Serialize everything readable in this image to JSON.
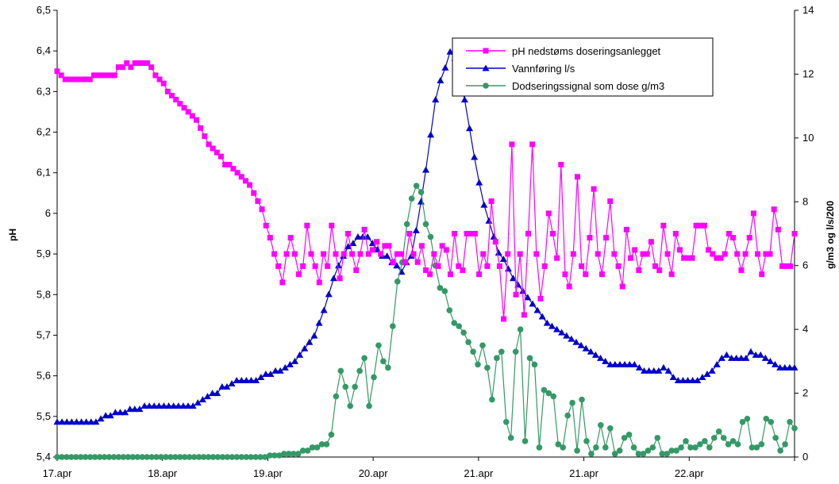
{
  "chart_data": {
    "type": "line",
    "title": "",
    "xlabel": "",
    "ylabel_left": "pH",
    "ylabel_right": "g/m3 og l/s/200",
    "ylim_left": [
      5.4,
      6.5
    ],
    "ylim_right": [
      0,
      14
    ],
    "y_left_ticks": [
      "5,4",
      "5,5",
      "5,6",
      "5,7",
      "5,8",
      "5,9",
      "6",
      "6,1",
      "6,2",
      "6,3",
      "6,4",
      "6,5"
    ],
    "y_right_ticks": [
      "0",
      "2",
      "4",
      "6",
      "8",
      "10",
      "12",
      "14"
    ],
    "x_ticks": [
      "17.apr",
      "18.apr",
      "19.apr",
      "20.apr",
      "21.apr",
      "21.apr",
      "22.apr"
    ],
    "grid": false,
    "legend_position": "top-right",
    "series": [
      {
        "name": "pH nedstøms doseringsanlegget",
        "axis": "left",
        "color": "#ff00ff",
        "marker": "square",
        "values": [
          6.35,
          6.34,
          6.33,
          6.33,
          6.33,
          6.33,
          6.33,
          6.33,
          6.33,
          6.34,
          6.34,
          6.34,
          6.34,
          6.34,
          6.34,
          6.36,
          6.36,
          6.37,
          6.36,
          6.37,
          6.37,
          6.37,
          6.37,
          6.36,
          6.34,
          6.33,
          6.32,
          6.3,
          6.29,
          6.28,
          6.27,
          6.26,
          6.25,
          6.24,
          6.23,
          6.21,
          6.19,
          6.17,
          6.16,
          6.15,
          6.14,
          6.12,
          6.12,
          6.11,
          6.1,
          6.09,
          6.08,
          6.07,
          6.05,
          6.03,
          6.01,
          5.97,
          5.94,
          5.9,
          5.87,
          5.83,
          5.9,
          5.94,
          5.9,
          5.85,
          5.87,
          5.97,
          5.9,
          5.87,
          5.83,
          5.9,
          5.87,
          5.97,
          5.9,
          5.84,
          5.9,
          5.95,
          5.9,
          5.86,
          5.9,
          5.96,
          5.9,
          5.91,
          5.93,
          5.9,
          5.92,
          5.92,
          5.88,
          5.9,
          5.9,
          5.88,
          5.95,
          5.9,
          5.88,
          5.92,
          5.86,
          5.85,
          5.9,
          5.87,
          5.92,
          5.91,
          5.85,
          5.95,
          5.87,
          5.86,
          5.95,
          5.95,
          5.95,
          5.85,
          5.9,
          5.87,
          6.03,
          5.93,
          5.87,
          5.74,
          5.9,
          6.17,
          5.8,
          5.9,
          5.75,
          5.95,
          6.17,
          5.9,
          5.79,
          5.87,
          6.0,
          5.95,
          5.89,
          6.12,
          5.85,
          5.82,
          5.9,
          6.09,
          5.87,
          5.85,
          5.94,
          6.06,
          5.9,
          5.85,
          5.94,
          6.03,
          5.9,
          5.87,
          5.82,
          5.96,
          5.89,
          5.91,
          5.86,
          5.9,
          5.9,
          5.93,
          5.87,
          5.86,
          5.97,
          5.9,
          5.85,
          5.95,
          5.91,
          5.89,
          5.89,
          5.89,
          5.97,
          5.97,
          5.97,
          5.91,
          5.9,
          5.89,
          5.89,
          5.9,
          5.95,
          5.94,
          5.9,
          5.86,
          5.9,
          5.94,
          6.0,
          5.9,
          5.85,
          5.9,
          5.9,
          6.01,
          5.96,
          5.87,
          5.87,
          5.87,
          5.95
        ]
      },
      {
        "name": "Vannføring l/s",
        "axis": "right",
        "color": "#0000cc",
        "marker": "triangle",
        "values": [
          1.1,
          1.1,
          1.1,
          1.1,
          1.1,
          1.1,
          1.1,
          1.1,
          1.1,
          1.2,
          1.3,
          1.3,
          1.4,
          1.4,
          1.4,
          1.5,
          1.5,
          1.5,
          1.6,
          1.6,
          1.6,
          1.6,
          1.6,
          1.6,
          1.6,
          1.6,
          1.6,
          1.6,
          1.6,
          1.7,
          1.8,
          1.9,
          2.0,
          2.0,
          2.2,
          2.2,
          2.3,
          2.4,
          2.4,
          2.4,
          2.4,
          2.4,
          2.5,
          2.6,
          2.6,
          2.7,
          2.7,
          2.8,
          2.9,
          3.0,
          3.2,
          3.4,
          3.6,
          3.8,
          4.2,
          4.6,
          5.1,
          5.6,
          6.0,
          6.3,
          6.6,
          6.7,
          6.9,
          6.9,
          6.9,
          6.7,
          6.5,
          6.3,
          6.3,
          6.1,
          6.0,
          5.8,
          6.1,
          6.3,
          7.1,
          8.0,
          9.0,
          10.1,
          11.2,
          11.8,
          12.2,
          12.7,
          12.5,
          12.0,
          11.2,
          10.3,
          9.4,
          8.6,
          7.9,
          7.4,
          6.9,
          6.4,
          6.2,
          5.9,
          5.6,
          5.4,
          5.2,
          5.0,
          4.8,
          4.6,
          4.4,
          4.2,
          4.1,
          4.0,
          3.9,
          3.8,
          3.7,
          3.6,
          3.5,
          3.4,
          3.3,
          3.2,
          3.1,
          3.0,
          2.9,
          2.9,
          2.9,
          2.9,
          2.9,
          2.9,
          2.8,
          2.7,
          2.7,
          2.7,
          2.7,
          2.8,
          2.7,
          2.5,
          2.4,
          2.4,
          2.4,
          2.4,
          2.4,
          2.5,
          2.6,
          2.7,
          2.9,
          3.1,
          3.2,
          3.1,
          3.1,
          3.1,
          3.1,
          3.3,
          3.2,
          3.2,
          3.1,
          3.0,
          2.9,
          2.8,
          2.8,
          2.8,
          2.8
        ]
      },
      {
        "name": "Dodseringssignal som dose g/m3",
        "axis": "right",
        "color": "#339966",
        "marker": "circle",
        "values": [
          0.0,
          0.0,
          0.0,
          0.0,
          0.0,
          0.0,
          0.0,
          0.0,
          0.0,
          0.0,
          0.0,
          0.0,
          0.0,
          0.0,
          0.0,
          0.0,
          0.0,
          0.0,
          0.0,
          0.0,
          0.0,
          0.0,
          0.0,
          0.0,
          0.0,
          0.0,
          0.0,
          0.0,
          0.0,
          0.0,
          0.0,
          0.0,
          0.0,
          0.0,
          0.0,
          0.0,
          0.0,
          0.0,
          0.0,
          0.0,
          0.0,
          0.0,
          0.0,
          0.0,
          0.0,
          0.05,
          0.05,
          0.05,
          0.1,
          0.1,
          0.1,
          0.1,
          0.2,
          0.2,
          0.3,
          0.3,
          0.4,
          0.4,
          0.7,
          1.9,
          2.7,
          2.2,
          1.6,
          2.2,
          2.7,
          3.1,
          1.6,
          2.5,
          3.5,
          3.0,
          2.8,
          4.1,
          5.5,
          6.1,
          7.3,
          8.1,
          8.5,
          8.3,
          7.3,
          6.9,
          6.0,
          5.3,
          5.2,
          4.6,
          4.2,
          4.1,
          3.9,
          3.6,
          3.3,
          2.9,
          3.5,
          2.8,
          1.8,
          3.1,
          3.3,
          1.1,
          0.6,
          3.3,
          4.0,
          0.5,
          3.1,
          2.9,
          0.3,
          2.1,
          2.0,
          1.9,
          0.4,
          0.3,
          1.3,
          1.7,
          0.2,
          1.8,
          0.5,
          0.1,
          0.3,
          1.0,
          0.3,
          0.9,
          0.1,
          0.2,
          0.6,
          0.7,
          0.3,
          0.1,
          0.1,
          0.2,
          0.3,
          0.6,
          0.1,
          0.1,
          0.2,
          0.2,
          0.3,
          0.5,
          0.3,
          0.3,
          0.4,
          0.5,
          0.3,
          0.6,
          0.8,
          0.6,
          0.4,
          0.5,
          0.4,
          1.1,
          1.2,
          0.3,
          0.3,
          0.4,
          1.2,
          1.1,
          0.6,
          0.2,
          0.4,
          1.1,
          0.9
        ]
      }
    ]
  }
}
